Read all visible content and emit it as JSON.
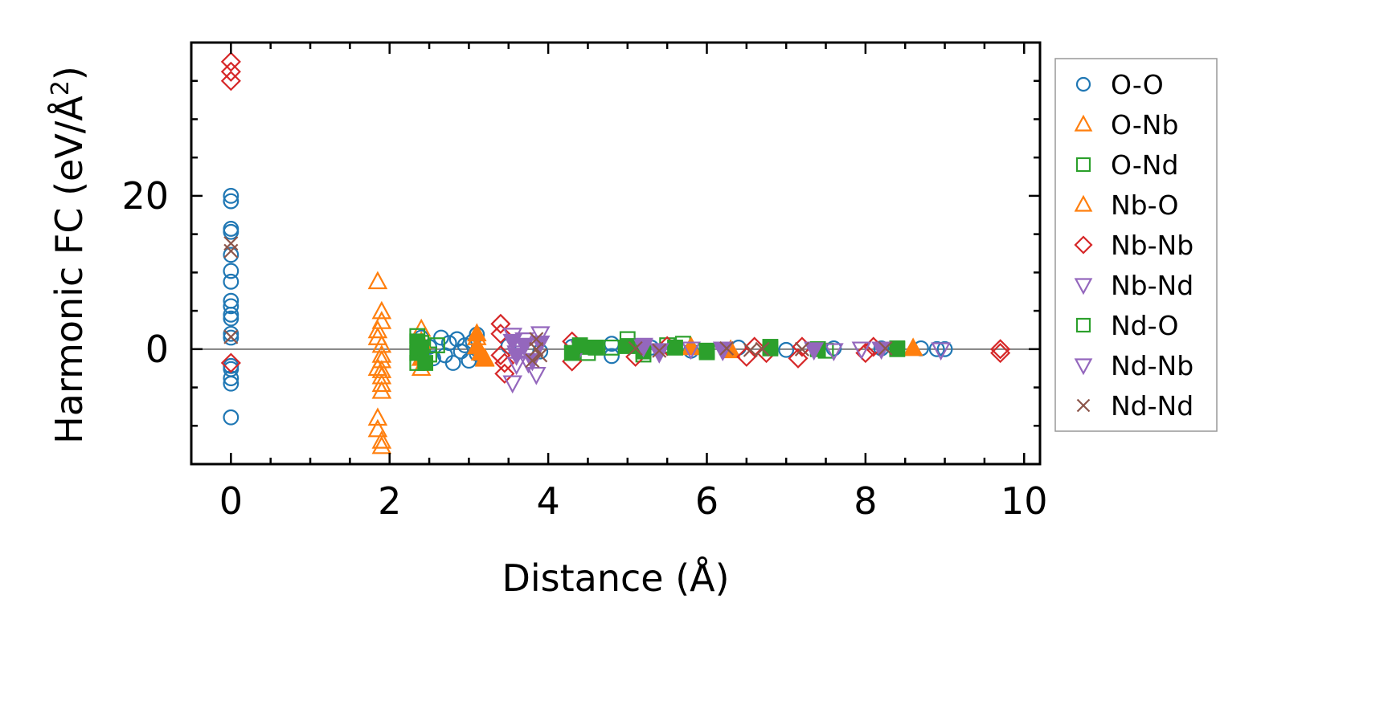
{
  "chart_data": {
    "type": "scatter",
    "title": "",
    "xlabel": "Distance (Å)",
    "ylabel": "Harmonic FC (eV/Å²)",
    "ylabel_base": "Harmonic FC (eV/Å",
    "ylabel_sup": "2",
    "ylabel_close": ")",
    "xlim": [
      -0.5,
      10.2
    ],
    "ylim": [
      -15,
      40
    ],
    "x_ticks": [
      0,
      2,
      4,
      6,
      8,
      10
    ],
    "x_tick_labels": [
      "0",
      "2",
      "4",
      "6",
      "8",
      "10"
    ],
    "y_ticks": [
      0,
      20
    ],
    "y_tick_labels": [
      "0",
      "20"
    ],
    "x_minor_step": 0.5,
    "y_minor_step": 5,
    "reference_line_y": 0,
    "reference_line_color": "#808080",
    "legend_position": "outside-right",
    "series": [
      {
        "name": "O-O",
        "marker": "circle",
        "color": "#1f77b4",
        "points": [
          [
            0,
            20
          ],
          [
            0,
            19.3
          ],
          [
            0,
            15.7
          ],
          [
            0,
            15.3
          ],
          [
            0,
            12.3
          ],
          [
            0,
            10.2
          ],
          [
            0,
            8.8
          ],
          [
            0,
            6.3
          ],
          [
            0,
            5.6
          ],
          [
            0,
            4.5
          ],
          [
            0,
            4.0
          ],
          [
            0,
            2.0
          ],
          [
            0,
            1.5
          ],
          [
            0,
            -2.2
          ],
          [
            0,
            -2.6
          ],
          [
            0,
            -3.8
          ],
          [
            0,
            -4.5
          ],
          [
            0,
            -8.9
          ],
          [
            2.4,
            1.5
          ],
          [
            2.5,
            0.3
          ],
          [
            2.55,
            -1.2
          ],
          [
            2.65,
            1.5
          ],
          [
            2.7,
            -0.8
          ],
          [
            2.75,
            0.8
          ],
          [
            2.8,
            -1.8
          ],
          [
            2.85,
            1.3
          ],
          [
            2.9,
            -0.3
          ],
          [
            2.95,
            0.5
          ],
          [
            3.0,
            -1.5
          ],
          [
            3.05,
            1.0
          ],
          [
            3.1,
            1.9
          ],
          [
            3.1,
            -0.6
          ],
          [
            3.5,
            0.4
          ],
          [
            3.9,
            -0.3
          ],
          [
            4.3,
            0.3
          ],
          [
            4.8,
            -0.9
          ],
          [
            4.8,
            0.7
          ],
          [
            5.3,
            0.2
          ],
          [
            5.8,
            -0.2
          ],
          [
            6.4,
            0.2
          ],
          [
            7.0,
            -0.1
          ],
          [
            7.6,
            0.1
          ],
          [
            8.2,
            0.1
          ],
          [
            8.7,
            0.1
          ],
          [
            8.9,
            0.0
          ],
          [
            9.0,
            0.0
          ]
        ]
      },
      {
        "name": "O-Nb",
        "marker": "triangle-up",
        "color": "#ff7f0e",
        "points": [
          [
            1.85,
            8.8
          ],
          [
            1.85,
            2.4
          ],
          [
            1.85,
            1.5
          ],
          [
            1.85,
            -2.5
          ],
          [
            1.85,
            -9.0
          ],
          [
            1.85,
            -10.5
          ],
          [
            1.9,
            4.9
          ],
          [
            1.9,
            3.6
          ],
          [
            1.9,
            0.5
          ],
          [
            1.9,
            -0.8
          ],
          [
            1.9,
            -1.5
          ],
          [
            1.9,
            -2.8
          ],
          [
            1.9,
            -3.6
          ],
          [
            1.9,
            -4.6
          ],
          [
            1.9,
            -5.5
          ],
          [
            1.9,
            -12.0
          ],
          [
            1.9,
            -12.7
          ],
          [
            2.4,
            2.6
          ],
          [
            2.4,
            -2.5
          ],
          [
            3.1,
            1.5
          ],
          [
            3.15,
            -0.5
          ],
          [
            3.2,
            -1.3
          ],
          [
            5.8,
            0.3
          ],
          [
            6.3,
            -0.2
          ],
          [
            8.6,
            0.1
          ]
        ]
      },
      {
        "name": "O-Nd",
        "marker": "square",
        "color": "#2ca02c",
        "points": [
          [
            2.35,
            1.7
          ],
          [
            2.35,
            -1.8
          ],
          [
            2.4,
            0.8
          ],
          [
            2.5,
            -0.7
          ],
          [
            2.6,
            0.5
          ],
          [
            4.4,
            0.3
          ],
          [
            4.5,
            -0.5
          ],
          [
            4.8,
            0.2
          ],
          [
            5.0,
            1.3
          ],
          [
            5.2,
            -0.7
          ],
          [
            5.5,
            0.5
          ],
          [
            5.7,
            0.7
          ],
          [
            6.0,
            -0.4
          ],
          [
            6.8,
            0.3
          ],
          [
            7.5,
            -0.2
          ],
          [
            8.4,
            0.1
          ]
        ]
      },
      {
        "name": "Nb-O",
        "marker": "triangle-up-filled",
        "color": "#ff7f0e",
        "points": [
          [
            2.4,
            1.0
          ],
          [
            2.4,
            -1.2
          ],
          [
            3.1,
            2.0
          ],
          [
            3.1,
            0.3
          ],
          [
            3.15,
            -0.5
          ],
          [
            3.2,
            -1.2
          ],
          [
            5.8,
            0.2
          ],
          [
            6.3,
            -0.1
          ],
          [
            8.6,
            0.1
          ]
        ]
      },
      {
        "name": "Nb-Nb",
        "marker": "diamond",
        "color": "#d62728",
        "points": [
          [
            0,
            37.5
          ],
          [
            0,
            36.2
          ],
          [
            0,
            35.0
          ],
          [
            0,
            -1.8
          ],
          [
            3.4,
            3.3
          ],
          [
            3.4,
            2.0
          ],
          [
            3.4,
            -0.8
          ],
          [
            3.45,
            -1.8
          ],
          [
            3.45,
            -3.2
          ],
          [
            4.3,
            1.0
          ],
          [
            4.3,
            -1.6
          ],
          [
            5.1,
            -1.0
          ],
          [
            5.5,
            0.4
          ],
          [
            6.5,
            -1.0
          ],
          [
            6.6,
            0.3
          ],
          [
            6.75,
            -0.5
          ],
          [
            7.15,
            -1.2
          ],
          [
            7.2,
            0.3
          ],
          [
            8.0,
            -0.5
          ],
          [
            8.1,
            0.3
          ],
          [
            9.7,
            0.0
          ],
          [
            9.7,
            -0.5
          ]
        ]
      },
      {
        "name": "Nb-Nd",
        "marker": "triangle-down",
        "color": "#9467bd",
        "points": [
          [
            3.55,
            1.8
          ],
          [
            3.6,
            -0.5
          ],
          [
            3.6,
            -2.0
          ],
          [
            3.55,
            -4.4
          ],
          [
            3.7,
            1.2
          ],
          [
            3.75,
            -1.8
          ],
          [
            3.85,
            -3.3
          ],
          [
            3.9,
            2.0
          ],
          [
            4.4,
            0.2
          ],
          [
            5.2,
            0.5
          ],
          [
            5.4,
            -0.5
          ],
          [
            5.8,
            0.0
          ],
          [
            6.2,
            -0.2
          ],
          [
            7.35,
            0.0
          ],
          [
            7.6,
            -0.2
          ],
          [
            7.95,
            0.0
          ],
          [
            8.95,
            -0.1
          ]
        ]
      },
      {
        "name": "Nd-O",
        "marker": "square-filled",
        "color": "#2ca02c",
        "points": [
          [
            2.35,
            1.0
          ],
          [
            2.35,
            -0.5
          ],
          [
            2.4,
            0.2
          ],
          [
            2.45,
            -1.8
          ],
          [
            4.3,
            -0.5
          ],
          [
            4.4,
            0.5
          ],
          [
            4.6,
            0.2
          ],
          [
            5.0,
            0.4
          ],
          [
            5.2,
            -0.3
          ],
          [
            5.6,
            0.2
          ],
          [
            6.0,
            -0.2
          ],
          [
            6.8,
            0.1
          ],
          [
            7.4,
            0.0
          ],
          [
            8.4,
            0.0
          ]
        ]
      },
      {
        "name": "Nd-Nb",
        "marker": "triangle-down-filled",
        "color": "#9467bd",
        "points": [
          [
            3.55,
            1.0
          ],
          [
            3.6,
            -0.8
          ],
          [
            3.7,
            0.5
          ],
          [
            3.8,
            -1.5
          ],
          [
            3.9,
            0.8
          ],
          [
            5.2,
            0.3
          ],
          [
            5.4,
            -0.2
          ],
          [
            6.2,
            0.0
          ],
          [
            7.35,
            -0.1
          ],
          [
            8.2,
            0.0
          ]
        ]
      },
      {
        "name": "Nd-Nd",
        "marker": "x",
        "color": "#8c564b",
        "points": [
          [
            0,
            13.8
          ],
          [
            0,
            12.8
          ],
          [
            0,
            1.6
          ],
          [
            3.85,
            1.3
          ],
          [
            3.85,
            0.0
          ],
          [
            3.9,
            -0.8
          ],
          [
            3.8,
            -1.5
          ],
          [
            5.1,
            0.1
          ],
          [
            5.4,
            -0.2
          ],
          [
            6.25,
            0.1
          ],
          [
            6.55,
            -0.1
          ],
          [
            6.7,
            0.0
          ],
          [
            7.2,
            0.0
          ],
          [
            8.25,
            0.1
          ]
        ]
      }
    ],
    "legend_entries": [
      {
        "label": "O-O",
        "marker": "circle",
        "color": "#1f77b4"
      },
      {
        "label": "O-Nb",
        "marker": "triangle-up",
        "color": "#ff7f0e"
      },
      {
        "label": "O-Nd",
        "marker": "square",
        "color": "#2ca02c"
      },
      {
        "label": "Nb-O",
        "marker": "triangle-up",
        "color": "#ff7f0e"
      },
      {
        "label": "Nb-Nb",
        "marker": "diamond",
        "color": "#d62728"
      },
      {
        "label": "Nb-Nd",
        "marker": "triangle-down",
        "color": "#9467bd"
      },
      {
        "label": "Nd-O",
        "marker": "square",
        "color": "#2ca02c"
      },
      {
        "label": "Nd-Nb",
        "marker": "triangle-down",
        "color": "#9467bd"
      },
      {
        "label": "Nd-Nd",
        "marker": "x",
        "color": "#8c564b"
      }
    ]
  }
}
